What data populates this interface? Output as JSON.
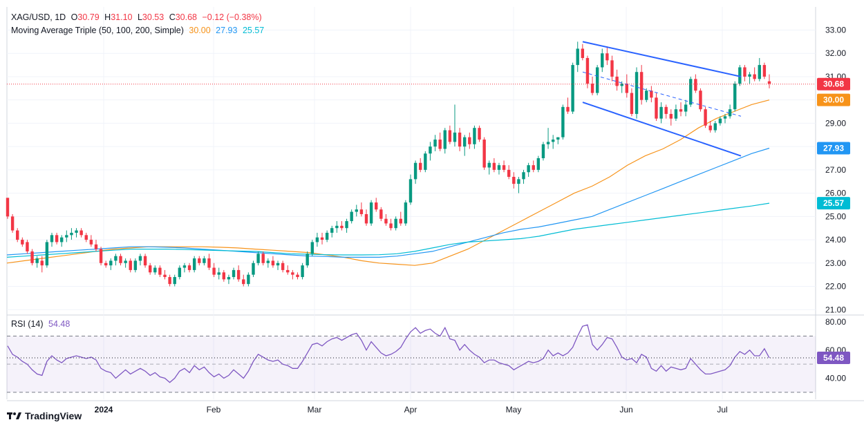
{
  "header": {
    "symbol": "XAG/USD, 1D",
    "open_label": "O",
    "open": "30.79",
    "high_label": "H",
    "high": "31.10",
    "low_label": "L",
    "low": "30.53",
    "close_label": "C",
    "close": "30.68",
    "change": "−0.12 (−0.38%)",
    "ma_title": "Moving Average Triple (50, 100, 200, Simple)",
    "ma50": "30.00",
    "ma100": "27.93",
    "ma200": "25.57",
    "rsi_title": "RSI (14)",
    "rsi_value": "54.48"
  },
  "colors": {
    "up": "#089981",
    "down": "#f23645",
    "ma50": "#f7931a",
    "ma100": "#2196f3",
    "ma200": "#00bcd4",
    "channel": "#2962ff",
    "rsi": "#7e57c2"
  },
  "chart_data": [
    {
      "type": "candlestick",
      "title": "XAG/USD, 1D",
      "y_ticks": [
        "21.00",
        "22.00",
        "23.00",
        "24.00",
        "25.00",
        "26.00",
        "27.00",
        "28.00",
        "29.00",
        "30.00",
        "31.00",
        "32.00",
        "33.00"
      ],
      "ylim": [
        20.8,
        33.4
      ],
      "x_labels": [
        "2024",
        "Feb",
        "Mar",
        "Apr",
        "May",
        "Jun",
        "Jul"
      ],
      "last_price_label": "30.68",
      "ma_labels": [
        "30.00",
        "27.93",
        "25.57"
      ],
      "candles_ohlc": [
        [
          25.8,
          25.8,
          24.9,
          25.0
        ],
        [
          25.0,
          25.1,
          24.3,
          24.4
        ],
        [
          24.4,
          24.5,
          23.9,
          24.0
        ],
        [
          24.0,
          24.1,
          23.7,
          23.8
        ],
        [
          23.9,
          24.0,
          23.4,
          23.5
        ],
        [
          23.5,
          23.6,
          22.9,
          23.0
        ],
        [
          23.0,
          23.3,
          22.8,
          23.2
        ],
        [
          23.1,
          23.3,
          22.6,
          22.9
        ],
        [
          22.9,
          24.0,
          22.8,
          23.9
        ],
        [
          23.9,
          24.3,
          23.7,
          24.2
        ],
        [
          24.2,
          24.3,
          23.8,
          23.9
        ],
        [
          23.9,
          24.2,
          23.7,
          24.1
        ],
        [
          24.1,
          24.4,
          23.9,
          24.2
        ],
        [
          24.2,
          24.5,
          24.0,
          24.3
        ],
        [
          24.3,
          24.5,
          24.1,
          24.4
        ],
        [
          24.4,
          24.5,
          24.1,
          24.2
        ],
        [
          24.2,
          24.3,
          23.9,
          24.0
        ],
        [
          24.0,
          24.2,
          23.7,
          23.8
        ],
        [
          23.8,
          24.0,
          23.5,
          23.6
        ],
        [
          23.6,
          23.7,
          22.9,
          23.0
        ],
        [
          23.0,
          23.1,
          22.8,
          22.9
        ],
        [
          22.9,
          23.2,
          22.7,
          23.1
        ],
        [
          23.1,
          23.4,
          22.9,
          23.3
        ],
        [
          23.3,
          23.4,
          22.9,
          23.0
        ],
        [
          23.0,
          23.2,
          22.8,
          23.1
        ],
        [
          23.1,
          23.2,
          22.6,
          22.7
        ],
        [
          22.7,
          23.2,
          22.6,
          23.1
        ],
        [
          23.1,
          23.4,
          22.9,
          23.3
        ],
        [
          23.3,
          23.4,
          22.8,
          22.9
        ],
        [
          22.9,
          23.0,
          22.5,
          22.6
        ],
        [
          22.6,
          22.9,
          22.5,
          22.8
        ],
        [
          22.8,
          22.9,
          22.4,
          22.5
        ],
        [
          22.5,
          22.7,
          22.3,
          22.4
        ],
        [
          22.4,
          22.5,
          22.0,
          22.1
        ],
        [
          22.1,
          22.5,
          22.0,
          22.4
        ],
        [
          22.4,
          22.9,
          22.3,
          22.8
        ],
        [
          22.8,
          23.0,
          22.6,
          22.9
        ],
        [
          22.9,
          23.0,
          22.6,
          22.7
        ],
        [
          22.7,
          23.3,
          22.6,
          23.2
        ],
        [
          23.2,
          23.3,
          22.9,
          23.0
        ],
        [
          23.0,
          23.3,
          22.9,
          23.2
        ],
        [
          23.2,
          23.4,
          22.7,
          22.8
        ],
        [
          22.8,
          23.0,
          22.4,
          22.5
        ],
        [
          22.5,
          22.8,
          22.3,
          22.6
        ],
        [
          22.6,
          22.7,
          22.2,
          22.3
        ],
        [
          22.3,
          22.5,
          22.1,
          22.4
        ],
        [
          22.4,
          22.8,
          22.3,
          22.7
        ],
        [
          22.7,
          22.9,
          22.2,
          22.3
        ],
        [
          22.3,
          22.5,
          22.0,
          22.1
        ],
        [
          22.1,
          22.6,
          22.0,
          22.5
        ],
        [
          22.5,
          23.1,
          22.4,
          23.0
        ],
        [
          23.0,
          23.5,
          22.9,
          23.4
        ],
        [
          23.4,
          23.5,
          22.9,
          23.0
        ],
        [
          23.0,
          23.2,
          22.8,
          23.1
        ],
        [
          23.1,
          23.3,
          22.8,
          22.9
        ],
        [
          22.9,
          23.1,
          22.7,
          23.0
        ],
        [
          23.0,
          23.1,
          22.6,
          22.7
        ],
        [
          22.7,
          22.9,
          22.5,
          22.6
        ],
        [
          22.6,
          22.7,
          22.3,
          22.5
        ],
        [
          22.5,
          22.6,
          22.3,
          22.4
        ],
        [
          22.4,
          23.0,
          22.3,
          22.9
        ],
        [
          22.9,
          23.5,
          22.8,
          23.4
        ],
        [
          23.4,
          24.0,
          23.3,
          23.9
        ],
        [
          23.9,
          24.3,
          23.7,
          24.1
        ],
        [
          24.1,
          24.3,
          23.8,
          24.0
        ],
        [
          24.0,
          24.4,
          23.9,
          24.3
        ],
        [
          24.3,
          24.6,
          24.1,
          24.5
        ],
        [
          24.5,
          24.8,
          24.3,
          24.6
        ],
        [
          24.6,
          24.8,
          24.4,
          24.5
        ],
        [
          24.5,
          24.9,
          24.3,
          24.8
        ],
        [
          24.8,
          25.3,
          24.7,
          25.2
        ],
        [
          25.2,
          25.5,
          25.0,
          25.3
        ],
        [
          25.3,
          25.6,
          25.0,
          25.1
        ],
        [
          25.1,
          25.3,
          24.6,
          24.7
        ],
        [
          24.7,
          25.7,
          24.6,
          25.6
        ],
        [
          25.6,
          25.8,
          25.2,
          25.3
        ],
        [
          25.3,
          25.4,
          24.8,
          24.9
        ],
        [
          24.9,
          25.1,
          24.6,
          24.7
        ],
        [
          24.7,
          24.9,
          24.4,
          24.5
        ],
        [
          24.5,
          25.0,
          24.4,
          24.9
        ],
        [
          24.9,
          25.2,
          24.6,
          24.7
        ],
        [
          24.7,
          25.7,
          24.6,
          25.6
        ],
        [
          25.6,
          26.8,
          25.5,
          26.6
        ],
        [
          26.6,
          27.4,
          26.4,
          27.3
        ],
        [
          27.3,
          27.5,
          26.9,
          27.0
        ],
        [
          27.0,
          27.8,
          26.9,
          27.7
        ],
        [
          27.7,
          28.2,
          27.4,
          28.0
        ],
        [
          28.0,
          28.5,
          27.8,
          28.3
        ],
        [
          28.3,
          28.6,
          27.8,
          27.9
        ],
        [
          27.9,
          28.8,
          27.7,
          28.7
        ],
        [
          28.7,
          28.9,
          28.1,
          28.2
        ],
        [
          28.2,
          29.8,
          28.0,
          28.6
        ],
        [
          28.6,
          28.8,
          27.8,
          28.0
        ],
        [
          28.0,
          28.5,
          27.6,
          28.4
        ],
        [
          28.4,
          28.6,
          27.9,
          28.1
        ],
        [
          28.1,
          28.9,
          27.9,
          28.8
        ],
        [
          28.8,
          28.9,
          28.2,
          28.3
        ],
        [
          28.3,
          28.4,
          27.0,
          27.1
        ],
        [
          27.1,
          27.4,
          26.8,
          27.3
        ],
        [
          27.3,
          27.5,
          26.9,
          27.0
        ],
        [
          27.0,
          27.3,
          26.8,
          27.2
        ],
        [
          27.2,
          27.4,
          26.9,
          27.0
        ],
        [
          27.0,
          27.2,
          26.6,
          26.7
        ],
        [
          26.7,
          26.9,
          26.2,
          26.4
        ],
        [
          26.4,
          26.7,
          26.0,
          26.6
        ],
        [
          26.6,
          27.0,
          26.4,
          26.9
        ],
        [
          26.9,
          27.3,
          26.7,
          27.2
        ],
        [
          27.2,
          27.4,
          26.9,
          27.0
        ],
        [
          27.0,
          27.6,
          26.9,
          27.5
        ],
        [
          27.5,
          28.2,
          27.4,
          28.1
        ],
        [
          28.1,
          28.8,
          27.9,
          28.2
        ],
        [
          28.2,
          28.5,
          27.9,
          28.3
        ],
        [
          28.3,
          28.4,
          28.1,
          28.4
        ],
        [
          28.4,
          29.8,
          28.3,
          29.7
        ],
        [
          29.7,
          30.1,
          29.4,
          29.5
        ],
        [
          29.5,
          31.6,
          29.4,
          31.5
        ],
        [
          31.5,
          32.5,
          31.2,
          32.2
        ],
        [
          32.2,
          32.4,
          31.7,
          31.8
        ],
        [
          31.8,
          31.9,
          30.5,
          30.7
        ],
        [
          30.7,
          31.0,
          30.2,
          30.3
        ],
        [
          30.3,
          31.5,
          30.2,
          31.4
        ],
        [
          31.4,
          32.2,
          31.2,
          32.0
        ],
        [
          32.0,
          32.3,
          31.5,
          31.7
        ],
        [
          31.7,
          31.9,
          30.8,
          31.0
        ],
        [
          31.0,
          31.3,
          30.4,
          30.6
        ],
        [
          30.6,
          30.8,
          30.3,
          30.7
        ],
        [
          30.7,
          31.1,
          30.1,
          30.3
        ],
        [
          30.3,
          30.5,
          29.3,
          29.4
        ],
        [
          29.4,
          31.4,
          29.2,
          31.2
        ],
        [
          31.2,
          31.5,
          29.8,
          30.0
        ],
        [
          30.0,
          30.5,
          29.9,
          30.4
        ],
        [
          30.4,
          30.6,
          29.9,
          30.1
        ],
        [
          30.1,
          30.3,
          29.1,
          29.2
        ],
        [
          29.2,
          29.9,
          29.0,
          29.7
        ],
        [
          29.7,
          29.8,
          29.2,
          29.4
        ],
        [
          29.4,
          29.6,
          28.9,
          29.2
        ],
        [
          29.2,
          29.8,
          29.1,
          29.6
        ],
        [
          29.6,
          29.9,
          29.3,
          29.5
        ],
        [
          29.5,
          30.0,
          29.3,
          29.8
        ],
        [
          29.8,
          31.0,
          29.7,
          30.9
        ],
        [
          30.9,
          31.1,
          30.3,
          30.4
        ],
        [
          30.4,
          30.5,
          29.5,
          29.6
        ],
        [
          29.6,
          29.7,
          28.8,
          28.9
        ],
        [
          28.9,
          29.1,
          28.6,
          28.7
        ],
        [
          28.7,
          29.1,
          28.6,
          29.0
        ],
        [
          29.0,
          29.3,
          28.9,
          29.2
        ],
        [
          29.2,
          29.4,
          29.0,
          29.3
        ],
        [
          29.3,
          29.8,
          29.2,
          29.6
        ],
        [
          29.6,
          30.8,
          29.5,
          30.7
        ],
        [
          30.7,
          31.5,
          30.6,
          31.4
        ],
        [
          31.4,
          31.5,
          30.8,
          31.0
        ],
        [
          31.0,
          31.2,
          30.7,
          31.1
        ],
        [
          31.1,
          31.4,
          30.8,
          30.9
        ],
        [
          30.9,
          31.8,
          30.8,
          31.5
        ],
        [
          31.5,
          31.6,
          30.9,
          31.0
        ],
        [
          30.8,
          31.1,
          30.5,
          30.7
        ]
      ],
      "series": [
        {
          "name": "50",
          "values": [
            23.0,
            23.1,
            23.2,
            23.3,
            23.4,
            23.5,
            23.6,
            23.65,
            23.7,
            23.7,
            23.7,
            23.7,
            23.68,
            23.65,
            23.6,
            23.55,
            23.5,
            23.45,
            23.35,
            23.25,
            23.1,
            23.0,
            22.95,
            22.9,
            23.0,
            23.3,
            23.6,
            24.0,
            24.4,
            24.8,
            25.2,
            25.6,
            26.0,
            26.3,
            26.7,
            27.2,
            27.6,
            27.9,
            28.3,
            28.8,
            29.2,
            29.5,
            29.8,
            30.0
          ]
        },
        {
          "name": "100",
          "values": [
            23.35,
            23.4,
            23.45,
            23.5,
            23.55,
            23.6,
            23.65,
            23.7,
            23.7,
            23.68,
            23.65,
            23.6,
            23.55,
            23.5,
            23.45,
            23.4,
            23.35,
            23.3,
            23.28,
            23.25,
            23.25,
            23.25,
            23.3,
            23.4,
            23.5,
            23.7,
            23.9,
            24.1,
            24.3,
            24.45,
            24.55,
            24.7,
            24.85,
            25.0,
            25.3,
            25.6,
            25.9,
            26.2,
            26.5,
            26.8,
            27.1,
            27.4,
            27.7,
            27.93
          ]
        },
        {
          "name": "200",
          "values": [
            23.25,
            23.3,
            23.35,
            23.4,
            23.45,
            23.5,
            23.55,
            23.6,
            23.6,
            23.6,
            23.58,
            23.56,
            23.54,
            23.52,
            23.5,
            23.45,
            23.4,
            23.38,
            23.36,
            23.35,
            23.35,
            23.36,
            23.4,
            23.5,
            23.65,
            23.8,
            23.9,
            23.95,
            24.0,
            24.05,
            24.15,
            24.3,
            24.45,
            24.55,
            24.65,
            24.75,
            24.85,
            24.95,
            25.05,
            25.15,
            25.25,
            25.35,
            25.45,
            25.57
          ]
        }
      ],
      "channel_upper": [
        [
          32.5
        ],
        [
          31.0
        ]
      ],
      "channel_lower": [
        [
          29.9
        ],
        [
          27.6
        ]
      ]
    },
    {
      "type": "line",
      "title": "RSI (14)",
      "y_ticks": [
        "40.00",
        "60.00",
        "80.00"
      ],
      "ylim": [
        25,
        85
      ],
      "band": [
        30,
        70
      ],
      "midline": 50,
      "last_value_label": "54.48",
      "values": [
        63,
        57,
        55,
        52,
        50,
        46,
        43,
        42,
        52,
        56,
        53,
        51,
        54,
        55,
        56,
        55,
        54,
        55,
        53,
        47,
        45,
        44,
        40,
        43,
        46,
        43,
        45,
        47,
        45,
        42,
        44,
        41,
        40,
        37,
        40,
        45,
        47,
        44,
        49,
        46,
        48,
        44,
        41,
        43,
        40,
        42,
        46,
        43,
        40,
        45,
        52,
        57,
        55,
        53,
        52,
        53,
        50,
        49,
        47,
        47,
        52,
        58,
        64,
        65,
        63,
        66,
        68,
        69,
        67,
        69,
        71,
        72,
        67,
        60,
        66,
        62,
        58,
        56,
        57,
        59,
        62,
        68,
        73,
        76,
        72,
        74,
        75,
        72,
        70,
        76,
        68,
        67,
        60,
        64,
        60,
        57,
        55,
        51,
        53,
        53,
        51,
        50,
        49,
        46,
        48,
        50,
        52,
        51,
        52,
        54,
        60,
        56,
        58,
        56,
        58,
        62,
        70,
        77,
        78,
        64,
        60,
        64,
        69,
        68,
        62,
        55,
        53,
        54,
        51,
        57,
        55,
        47,
        45,
        49,
        45,
        48,
        47,
        46,
        47,
        54,
        50,
        46,
        43,
        43,
        44,
        45,
        46,
        49,
        55,
        59,
        57,
        60,
        56,
        56,
        61,
        54.48
      ]
    }
  ],
  "footer": {
    "brand": "TradingView"
  }
}
